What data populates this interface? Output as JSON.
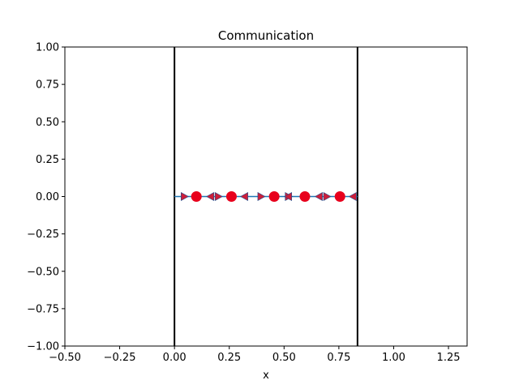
{
  "chart_data": {
    "type": "scatter",
    "title": "Communication",
    "xlabel": "x",
    "ylabel": "",
    "xlim": [
      -0.5,
      1.335
    ],
    "ylim": [
      -1.0,
      1.0
    ],
    "xticks": [
      -0.5,
      -0.25,
      0.0,
      0.25,
      0.5,
      0.75,
      1.0,
      1.25
    ],
    "yticks": [
      -1.0,
      -0.75,
      -0.5,
      -0.25,
      0.0,
      0.25,
      0.5,
      0.75,
      1.0
    ],
    "xtick_labels": [
      "−0.50",
      "−0.25",
      "0.00",
      "0.25",
      "0.50",
      "0.75",
      "1.00",
      "1.25"
    ],
    "ytick_labels": [
      "−1.00",
      "−0.75",
      "−0.50",
      "−0.25",
      "0.00",
      "0.25",
      "0.50",
      "0.75",
      "1.00"
    ],
    "grid": false,
    "boundaries": [
      0.0,
      0.835
    ],
    "line": {
      "x": [
        0.0,
        0.835
      ],
      "y": [
        0.0,
        0.0
      ],
      "color": "#1f77b4"
    },
    "points": {
      "x": [
        0.1,
        0.26,
        0.455,
        0.595,
        0.755
      ],
      "y": [
        0,
        0,
        0,
        0,
        0
      ],
      "color": "#e8001c"
    },
    "arrows_right": {
      "x": [
        0.045,
        0.2,
        0.395,
        0.52,
        0.695
      ],
      "y": [
        0,
        0,
        0,
        0,
        0
      ],
      "color": "#cc1f3a"
    },
    "arrows_left": {
      "x": [
        0.165,
        0.32,
        0.52,
        0.66,
        0.815
      ],
      "y": [
        0,
        0,
        0,
        0,
        0
      ],
      "color": "#cc1f3a"
    }
  }
}
